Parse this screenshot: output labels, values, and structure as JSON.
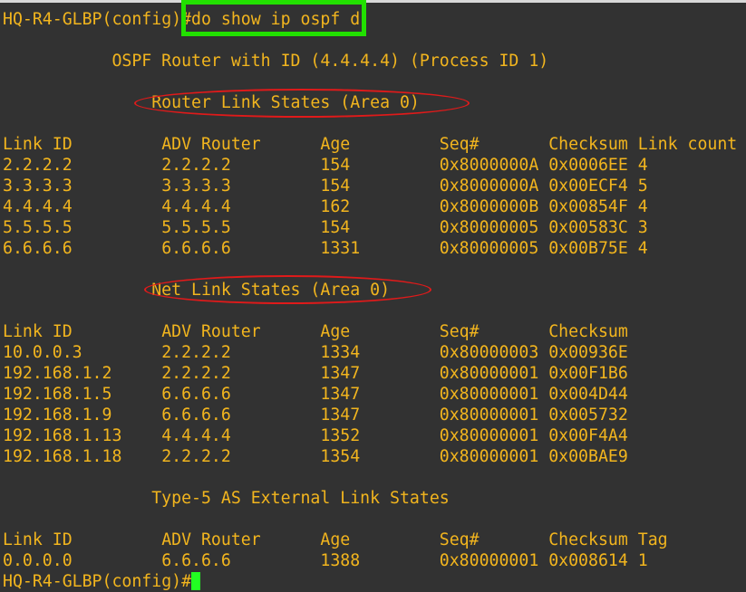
{
  "colors": {
    "text": "#f2b51e",
    "background": "#323232",
    "command_highlight": "#22e000",
    "annotation": "#e01a1a",
    "cursor": "#22ff22"
  },
  "prompt": "HQ-R4-GLBP(config)#",
  "command": "do show ip ospf d",
  "router_line": "OSPF Router with ID (4.4.4.4) (Process ID 1)",
  "sections": [
    {
      "title": "Router Link States (Area 0)",
      "headers": [
        "Link ID",
        "ADV Router",
        "Age",
        "Seq#",
        "Checksum",
        "Link count"
      ],
      "rows": [
        [
          "2.2.2.2",
          "2.2.2.2",
          "154",
          "0x8000000A",
          "0x0006EE",
          "4"
        ],
        [
          "3.3.3.3",
          "3.3.3.3",
          "154",
          "0x8000000A",
          "0x00ECF4",
          "5"
        ],
        [
          "4.4.4.4",
          "4.4.4.4",
          "162",
          "0x8000000B",
          "0x00854F",
          "4"
        ],
        [
          "5.5.5.5",
          "5.5.5.5",
          "154",
          "0x80000005",
          "0x00583C",
          "3"
        ],
        [
          "6.6.6.6",
          "6.6.6.6",
          "1331",
          "0x80000005",
          "0x00B75E",
          "4"
        ]
      ]
    },
    {
      "title": "Net Link States (Area 0)",
      "headers": [
        "Link ID",
        "ADV Router",
        "Age",
        "Seq#",
        "Checksum"
      ],
      "rows": [
        [
          "10.0.0.3",
          "2.2.2.2",
          "1334",
          "0x80000003",
          "0x00936E"
        ],
        [
          "192.168.1.2",
          "2.2.2.2",
          "1347",
          "0x80000001",
          "0x00F1B6"
        ],
        [
          "192.168.1.5",
          "6.6.6.6",
          "1347",
          "0x80000001",
          "0x004D44"
        ],
        [
          "192.168.1.9",
          "6.6.6.6",
          "1347",
          "0x80000001",
          "0x005732"
        ],
        [
          "192.168.1.13",
          "4.4.4.4",
          "1352",
          "0x80000001",
          "0x00F4A4"
        ],
        [
          "192.168.1.18",
          "2.2.2.2",
          "1354",
          "0x80000001",
          "0x00BAE9"
        ]
      ]
    },
    {
      "title": "Type-5 AS External Link States",
      "headers": [
        "Link ID",
        "ADV Router",
        "Age",
        "Seq#",
        "Checksum",
        "Tag"
      ],
      "rows": [
        [
          "0.0.0.0",
          "6.6.6.6",
          "1388",
          "0x80000001",
          "0x008614",
          "1"
        ]
      ]
    }
  ]
}
